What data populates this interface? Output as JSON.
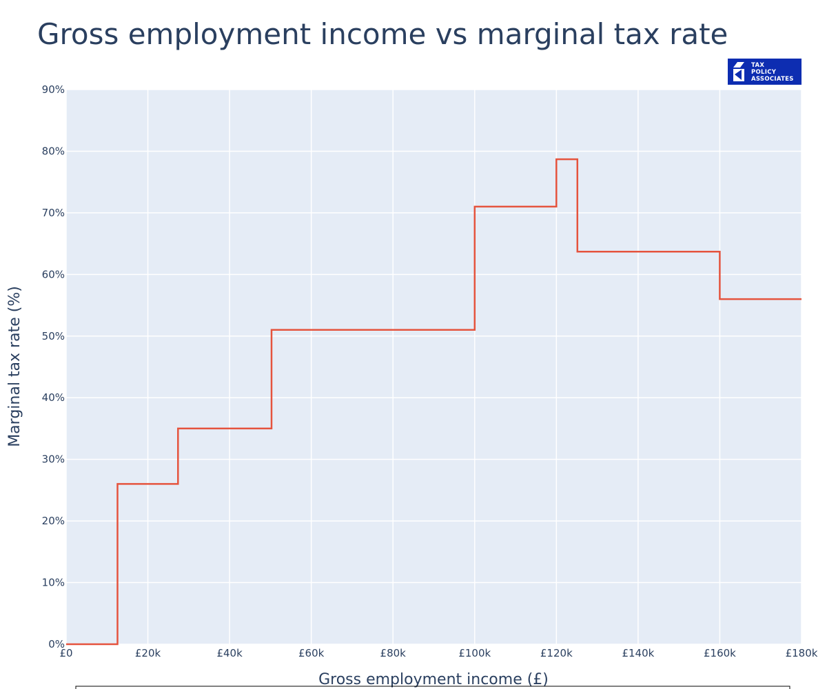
{
  "chart_data": {
    "type": "line",
    "line_shape": "step",
    "title": "Gross employment income vs marginal tax rate",
    "xlabel": "Gross employment income (£)",
    "ylabel": "Marginal tax rate (%)",
    "xlim": [
      0,
      180000
    ],
    "ylim": [
      0,
      90
    ],
    "x_ticks": [
      0,
      20000,
      40000,
      60000,
      80000,
      100000,
      120000,
      140000,
      160000,
      180000
    ],
    "x_tick_labels": [
      "£0",
      "£20k",
      "£40k",
      "£60k",
      "£80k",
      "£100k",
      "£120k",
      "£140k",
      "£160k",
      "£180k"
    ],
    "y_ticks": [
      0,
      10,
      20,
      30,
      40,
      50,
      60,
      70,
      80,
      90
    ],
    "y_tick_labels": [
      "0%",
      "10%",
      "20%",
      "30%",
      "40%",
      "50%",
      "60%",
      "70%",
      "80%",
      "90%"
    ],
    "grid": true,
    "colors": {
      "plot_background": "#e5ecf6",
      "grid": "#ffffff",
      "line": "#e5533d",
      "text": "#2a3f5f",
      "logo_background": "#0d2db1"
    },
    "series": [
      {
        "x": [
          0,
          12570,
          12570,
          27380,
          27380,
          50270,
          50270,
          100000,
          100000,
          120000,
          120000,
          125140,
          125140,
          160000,
          160000,
          180000
        ],
        "y": [
          0,
          0,
          26,
          26,
          35,
          35,
          51,
          51,
          71,
          71,
          78.7,
          78.7,
          63.7,
          63.7,
          56,
          56
        ]
      }
    ]
  },
  "logo": {
    "lines": [
      "TAX",
      "POLICY",
      "ASSOCIATES"
    ]
  }
}
